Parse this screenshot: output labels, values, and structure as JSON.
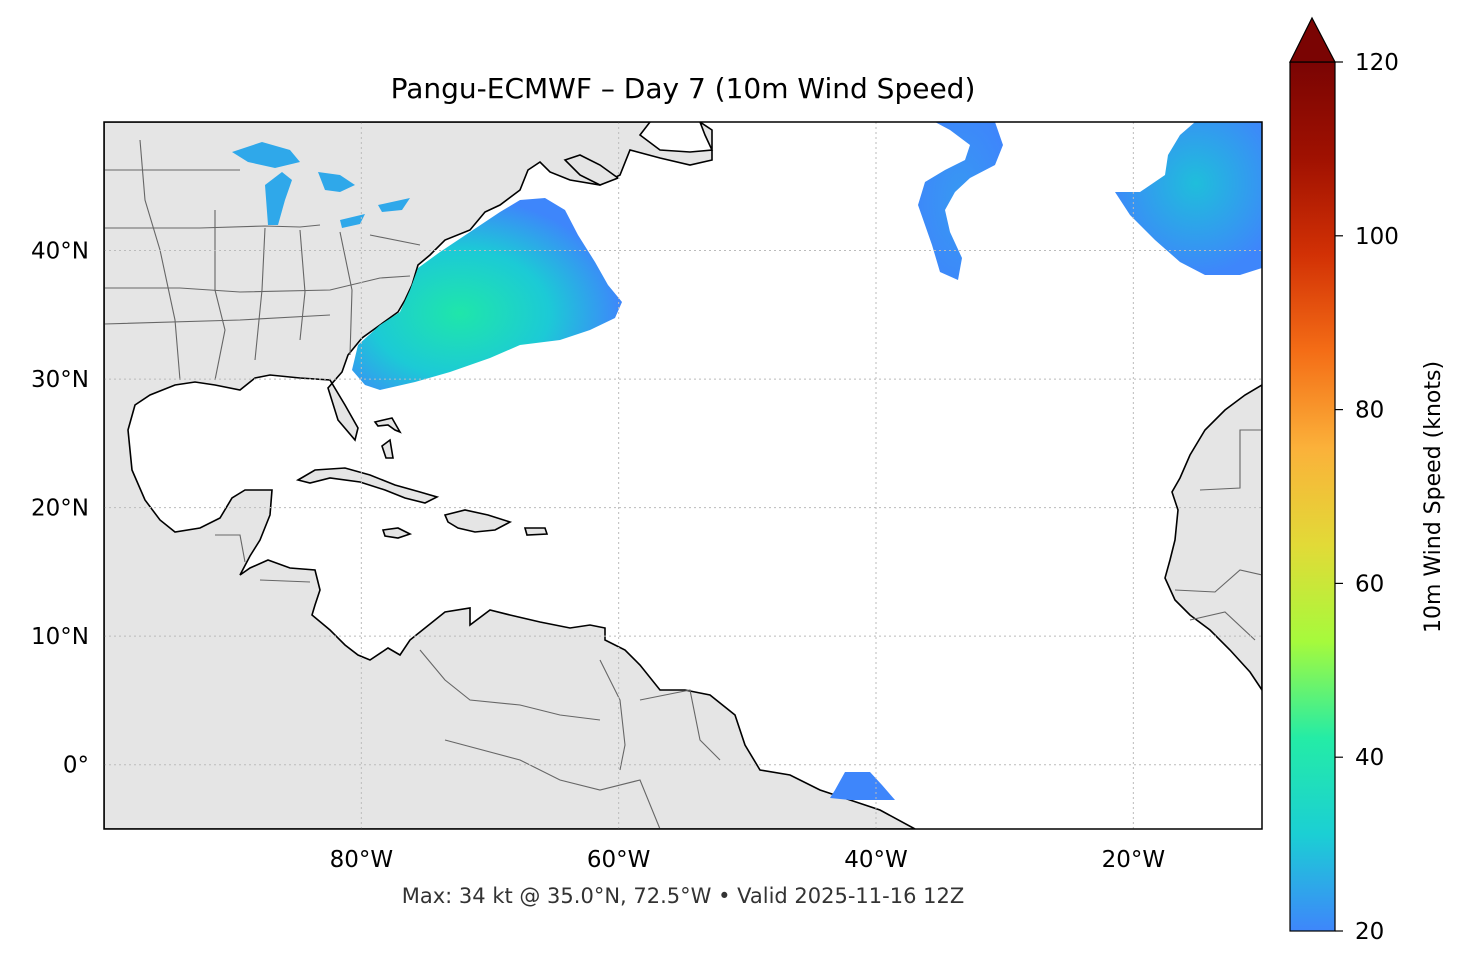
{
  "title": "Pangu-ECMWF – Day 7 (10m Wind Speed)",
  "footer": "Max: 34 kt @ 35.0°N, 72.5°W • Valid 2025-11-16 12Z",
  "map": {
    "extent": {
      "lon": [
        -100,
        -10
      ],
      "lat": [
        -5,
        50
      ]
    },
    "lon_ticks": [
      {
        "value": -80,
        "label": "80°W"
      },
      {
        "value": -60,
        "label": "60°W"
      },
      {
        "value": -40,
        "label": "40°W"
      },
      {
        "value": -20,
        "label": "20°W"
      }
    ],
    "lat_ticks": [
      {
        "value": 40,
        "label": "40°N"
      },
      {
        "value": 30,
        "label": "30°N"
      },
      {
        "value": 20,
        "label": "20°N"
      },
      {
        "value": 10,
        "label": "10°N"
      },
      {
        "value": 0,
        "label": "0°"
      }
    ],
    "gridlines": true,
    "land_color": "#e5e5e5",
    "coast_color": "#000000",
    "border_color": "#666666"
  },
  "colorbar": {
    "label": "10m Wind Speed (knots)",
    "range": [
      20,
      120
    ],
    "extend": "max",
    "ticks": [
      {
        "value": 20,
        "label": "20"
      },
      {
        "value": 40,
        "label": "40"
      },
      {
        "value": 60,
        "label": "60"
      },
      {
        "value": 80,
        "label": "80"
      },
      {
        "value": 100,
        "label": "100"
      },
      {
        "value": 120,
        "label": "120"
      }
    ],
    "colormap": [
      "#3e86fb",
      "#1bcfd4",
      "#24eca6",
      "#a6fa3c",
      "#e2da37",
      "#fbb13a",
      "#f46d16",
      "#d23105",
      "#a01101",
      "#7a0403"
    ]
  },
  "wind_fields": [
    {
      "name": "us-east-coast-swath",
      "peak_speed": 34,
      "peak_at": "35.0°N, 72.5°W"
    },
    {
      "name": "mid-atlantic-band",
      "peak_speed": 24
    },
    {
      "name": "northeast-atlantic-swirl",
      "peak_speed": 27
    },
    {
      "name": "great-lakes-patches",
      "peak_speed": 28
    },
    {
      "name": "equatorial-patch",
      "peak_speed": 22
    }
  ]
}
